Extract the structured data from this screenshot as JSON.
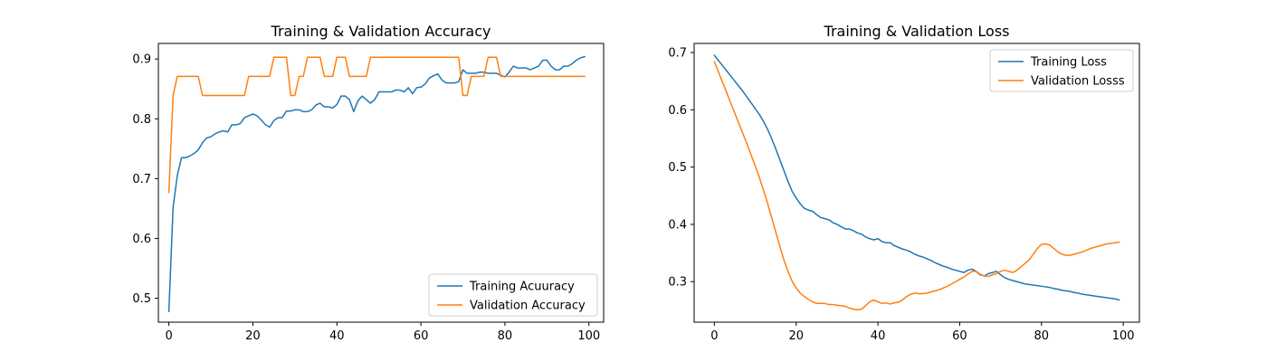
{
  "figure": {
    "background": "#ffffff"
  },
  "chart_data": [
    {
      "type": "line",
      "title": "Training & Validation Accuracy",
      "xlabel": "",
      "ylabel": "",
      "xlim": [
        -2.5,
        103.5
      ],
      "ylim": [
        0.46,
        0.926
      ],
      "xticks": [
        0,
        20,
        40,
        60,
        80,
        100
      ],
      "xtick_labels": [
        "0",
        "20",
        "40",
        "60",
        "80",
        "100"
      ],
      "yticks": [
        0.5,
        0.6,
        0.7,
        0.8,
        0.9
      ],
      "ytick_labels": [
        "0.5",
        "0.6",
        "0.7",
        "0.8",
        "0.9"
      ],
      "legend_position": "lower-right",
      "series": [
        {
          "name": "Training Acuuracy",
          "color": "#1f77b4",
          "x": [
            0,
            1,
            2,
            3,
            4,
            5,
            6,
            7,
            8,
            9,
            10,
            11,
            12,
            13,
            14,
            15,
            16,
            17,
            18,
            19,
            20,
            21,
            22,
            23,
            24,
            25,
            26,
            27,
            28,
            29,
            30,
            31,
            32,
            33,
            34,
            35,
            36,
            37,
            38,
            39,
            40,
            41,
            42,
            43,
            44,
            45,
            46,
            47,
            48,
            49,
            50,
            51,
            52,
            53,
            54,
            55,
            56,
            57,
            58,
            59,
            60,
            61,
            62,
            63,
            64,
            65,
            66,
            67,
            68,
            69,
            70,
            71,
            72,
            73,
            74,
            75,
            76,
            77,
            78,
            79,
            80,
            81,
            82,
            83,
            84,
            85,
            86,
            87,
            88,
            89,
            90,
            91,
            92,
            93,
            94,
            95,
            96,
            97,
            98,
            99
          ],
          "values": [
            0.478,
            0.652,
            0.705,
            0.735,
            0.735,
            0.738,
            0.742,
            0.748,
            0.76,
            0.768,
            0.77,
            0.775,
            0.778,
            0.78,
            0.778,
            0.79,
            0.79,
            0.792,
            0.802,
            0.805,
            0.808,
            0.805,
            0.798,
            0.79,
            0.786,
            0.797,
            0.802,
            0.802,
            0.813,
            0.813,
            0.815,
            0.815,
            0.812,
            0.812,
            0.815,
            0.823,
            0.826,
            0.82,
            0.82,
            0.818,
            0.824,
            0.838,
            0.838,
            0.832,
            0.812,
            0.83,
            0.838,
            0.832,
            0.826,
            0.832,
            0.845,
            0.845,
            0.845,
            0.845,
            0.848,
            0.848,
            0.845,
            0.852,
            0.842,
            0.852,
            0.853,
            0.858,
            0.868,
            0.872,
            0.875,
            0.865,
            0.86,
            0.86,
            0.86,
            0.862,
            0.882,
            0.876,
            0.876,
            0.876,
            0.878,
            0.878,
            0.876,
            0.876,
            0.876,
            0.873,
            0.87,
            0.878,
            0.888,
            0.885,
            0.885,
            0.885,
            0.882,
            0.885,
            0.888,
            0.898,
            0.898,
            0.888,
            0.882,
            0.882,
            0.888,
            0.888,
            0.892,
            0.898,
            0.902,
            0.904
          ]
        },
        {
          "name": "Validation Accuracy",
          "color": "#ff7f0e",
          "x": [
            0,
            1,
            2,
            3,
            4,
            5,
            6,
            7,
            8,
            9,
            10,
            11,
            12,
            13,
            14,
            15,
            16,
            17,
            18,
            19,
            20,
            21,
            22,
            23,
            24,
            25,
            26,
            27,
            28,
            29,
            30,
            31,
            32,
            33,
            34,
            35,
            36,
            37,
            38,
            39,
            40,
            41,
            42,
            43,
            44,
            45,
            46,
            47,
            48,
            49,
            50,
            51,
            52,
            53,
            54,
            55,
            56,
            57,
            58,
            59,
            60,
            61,
            62,
            63,
            64,
            65,
            66,
            67,
            68,
            69,
            70,
            71,
            72,
            73,
            74,
            75,
            76,
            77,
            78,
            79,
            80,
            81,
            82,
            83,
            84,
            85,
            86,
            87,
            88,
            89,
            90,
            91,
            92,
            93,
            94,
            95,
            96,
            97,
            98,
            99
          ],
          "values": [
            0.677,
            0.839,
            0.871,
            0.871,
            0.871,
            0.871,
            0.871,
            0.871,
            0.839,
            0.839,
            0.839,
            0.839,
            0.839,
            0.839,
            0.839,
            0.839,
            0.839,
            0.839,
            0.839,
            0.871,
            0.871,
            0.871,
            0.871,
            0.871,
            0.871,
            0.903,
            0.903,
            0.903,
            0.903,
            0.839,
            0.839,
            0.871,
            0.871,
            0.903,
            0.903,
            0.903,
            0.903,
            0.871,
            0.871,
            0.871,
            0.903,
            0.903,
            0.903,
            0.871,
            0.871,
            0.871,
            0.871,
            0.871,
            0.903,
            0.903,
            0.903,
            0.903,
            0.903,
            0.903,
            0.903,
            0.903,
            0.903,
            0.903,
            0.903,
            0.903,
            0.903,
            0.903,
            0.903,
            0.903,
            0.903,
            0.903,
            0.903,
            0.903,
            0.903,
            0.903,
            0.839,
            0.839,
            0.871,
            0.871,
            0.871,
            0.871,
            0.903,
            0.903,
            0.903,
            0.871,
            0.871,
            0.871,
            0.871,
            0.871,
            0.871,
            0.871,
            0.871,
            0.871,
            0.871,
            0.871,
            0.871,
            0.871,
            0.871,
            0.871,
            0.871,
            0.871,
            0.871,
            0.871,
            0.871,
            0.871
          ]
        }
      ]
    },
    {
      "type": "line",
      "title": "Training & Validation Loss",
      "xlabel": "",
      "ylabel": "",
      "xlim": [
        -4.95,
        103.95
      ],
      "ylim": [
        0.2293,
        0.7158
      ],
      "xticks": [
        0,
        20,
        40,
        60,
        80,
        100
      ],
      "xtick_labels": [
        "0",
        "20",
        "40",
        "60",
        "80",
        "100"
      ],
      "yticks": [
        0.3,
        0.4,
        0.5,
        0.6,
        0.7
      ],
      "ytick_labels": [
        "0.3",
        "0.4",
        "0.5",
        "0.6",
        "0.7"
      ],
      "legend_position": "upper-right",
      "series": [
        {
          "name": "Training Loss",
          "color": "#1f77b4",
          "x": [
            0,
            1,
            2,
            3,
            4,
            5,
            6,
            7,
            8,
            9,
            10,
            11,
            12,
            13,
            14,
            15,
            16,
            17,
            18,
            19,
            20,
            21,
            22,
            23,
            24,
            25,
            26,
            27,
            28,
            29,
            30,
            31,
            32,
            33,
            34,
            35,
            36,
            37,
            38,
            39,
            40,
            41,
            42,
            43,
            44,
            45,
            46,
            47,
            48,
            49,
            50,
            51,
            52,
            53,
            54,
            55,
            56,
            57,
            58,
            59,
            60,
            61,
            62,
            63,
            64,
            65,
            66,
            67,
            68,
            69,
            70,
            71,
            72,
            73,
            74,
            75,
            76,
            77,
            78,
            79,
            80,
            81,
            82,
            83,
            84,
            85,
            86,
            87,
            88,
            89,
            90,
            91,
            92,
            93,
            94,
            95,
            96,
            97,
            98,
            99
          ],
          "values": [
            0.695,
            0.686,
            0.677,
            0.668,
            0.659,
            0.65,
            0.641,
            0.632,
            0.622,
            0.612,
            0.602,
            0.592,
            0.58,
            0.566,
            0.55,
            0.532,
            0.513,
            0.494,
            0.475,
            0.458,
            0.446,
            0.436,
            0.428,
            0.425,
            0.423,
            0.417,
            0.412,
            0.41,
            0.408,
            0.403,
            0.4,
            0.396,
            0.392,
            0.392,
            0.389,
            0.385,
            0.383,
            0.378,
            0.375,
            0.373,
            0.375,
            0.37,
            0.368,
            0.368,
            0.363,
            0.36,
            0.357,
            0.355,
            0.352,
            0.348,
            0.345,
            0.343,
            0.34,
            0.337,
            0.333,
            0.33,
            0.327,
            0.325,
            0.322,
            0.32,
            0.318,
            0.316,
            0.32,
            0.322,
            0.318,
            0.312,
            0.31,
            0.314,
            0.316,
            0.318,
            0.312,
            0.307,
            0.304,
            0.302,
            0.3,
            0.298,
            0.296,
            0.295,
            0.294,
            0.293,
            0.292,
            0.291,
            0.29,
            0.288,
            0.287,
            0.285,
            0.284,
            0.283,
            0.281,
            0.28,
            0.278,
            0.277,
            0.276,
            0.275,
            0.274,
            0.273,
            0.272,
            0.271,
            0.27,
            0.268
          ]
        },
        {
          "name": "Validation Losss",
          "color": "#ff7f0e",
          "x": [
            0,
            1,
            2,
            3,
            4,
            5,
            6,
            7,
            8,
            9,
            10,
            11,
            12,
            13,
            14,
            15,
            16,
            17,
            18,
            19,
            20,
            21,
            22,
            23,
            24,
            25,
            26,
            27,
            28,
            29,
            30,
            31,
            32,
            33,
            34,
            35,
            36,
            37,
            38,
            39,
            40,
            41,
            42,
            43,
            44,
            45,
            46,
            47,
            48,
            49,
            50,
            51,
            52,
            53,
            54,
            55,
            56,
            57,
            58,
            59,
            60,
            61,
            62,
            63,
            64,
            65,
            66,
            67,
            68,
            69,
            70,
            71,
            72,
            73,
            74,
            75,
            76,
            77,
            78,
            79,
            80,
            81,
            82,
            83,
            84,
            85,
            86,
            87,
            88,
            89,
            90,
            91,
            92,
            93,
            94,
            95,
            96,
            97,
            98,
            99
          ],
          "values": [
            0.684,
            0.666,
            0.648,
            0.63,
            0.612,
            0.594,
            0.576,
            0.558,
            0.54,
            0.521,
            0.502,
            0.482,
            0.46,
            0.437,
            0.412,
            0.387,
            0.362,
            0.338,
            0.318,
            0.301,
            0.289,
            0.28,
            0.274,
            0.269,
            0.265,
            0.262,
            0.262,
            0.262,
            0.26,
            0.26,
            0.259,
            0.258,
            0.257,
            0.254,
            0.252,
            0.251,
            0.252,
            0.258,
            0.265,
            0.268,
            0.265,
            0.262,
            0.263,
            0.261,
            0.263,
            0.264,
            0.268,
            0.274,
            0.278,
            0.28,
            0.279,
            0.279,
            0.28,
            0.282,
            0.284,
            0.286,
            0.289,
            0.292,
            0.296,
            0.3,
            0.304,
            0.308,
            0.313,
            0.318,
            0.318,
            0.313,
            0.31,
            0.309,
            0.312,
            0.314,
            0.318,
            0.32,
            0.318,
            0.316,
            0.32,
            0.326,
            0.332,
            0.338,
            0.348,
            0.358,
            0.365,
            0.366,
            0.364,
            0.358,
            0.352,
            0.348,
            0.346,
            0.346,
            0.348,
            0.35,
            0.352,
            0.355,
            0.358,
            0.36,
            0.362,
            0.364,
            0.366,
            0.367,
            0.368,
            0.369
          ]
        }
      ]
    }
  ]
}
